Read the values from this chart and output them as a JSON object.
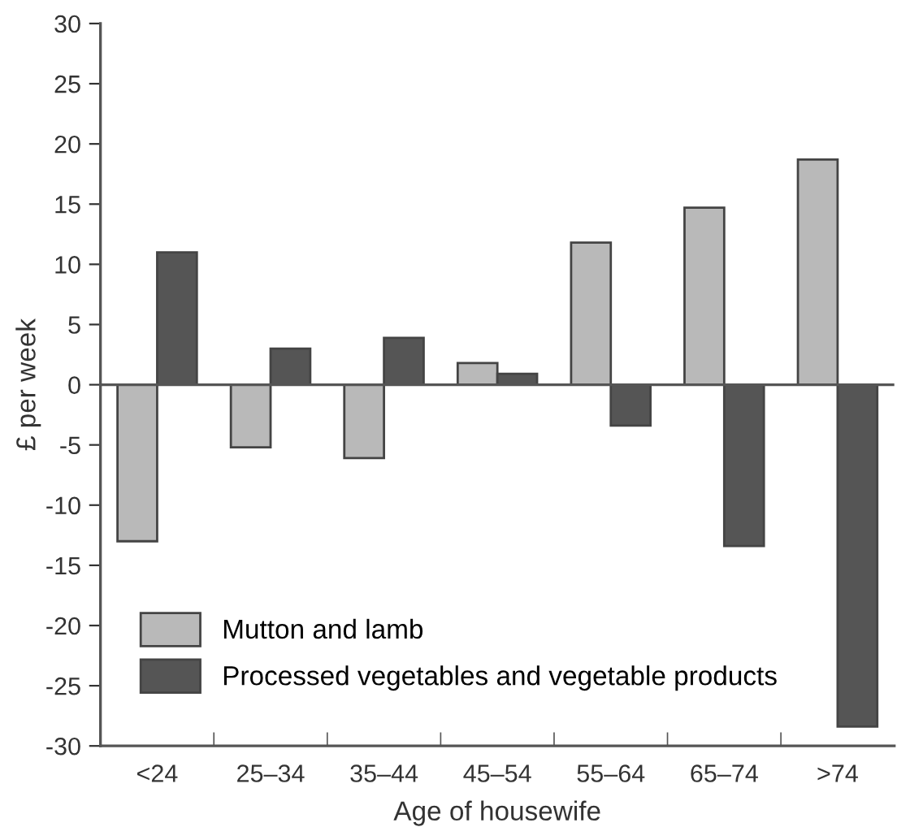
{
  "chart_data": {
    "type": "bar",
    "xlabel": "Age of housewife",
    "ylabel": "£ per week",
    "categories": [
      "<24",
      "25–34",
      "35–44",
      "45–54",
      "55–64",
      "65–74",
      ">74"
    ],
    "series": [
      {
        "name": "Mutton and lamb",
        "color": "#b9b9b9",
        "values": [
          -13.0,
          -5.2,
          -6.1,
          1.8,
          11.8,
          14.7,
          18.7
        ]
      },
      {
        "name": "Processed vegetables and vegetable products",
        "color": "#555555",
        "values": [
          11.0,
          3.0,
          3.9,
          0.9,
          -3.4,
          -13.4,
          -28.4
        ]
      }
    ],
    "ylim": [
      -30,
      30
    ],
    "yticks": [
      -30,
      -25,
      -20,
      -15,
      -10,
      -5,
      0,
      5,
      10,
      15,
      20,
      25,
      30
    ],
    "ref_lines": [
      {
        "axis": "y",
        "value": 0,
        "label": null,
        "color": "#555555"
      }
    ],
    "grid": false,
    "legend": "bottom left"
  }
}
